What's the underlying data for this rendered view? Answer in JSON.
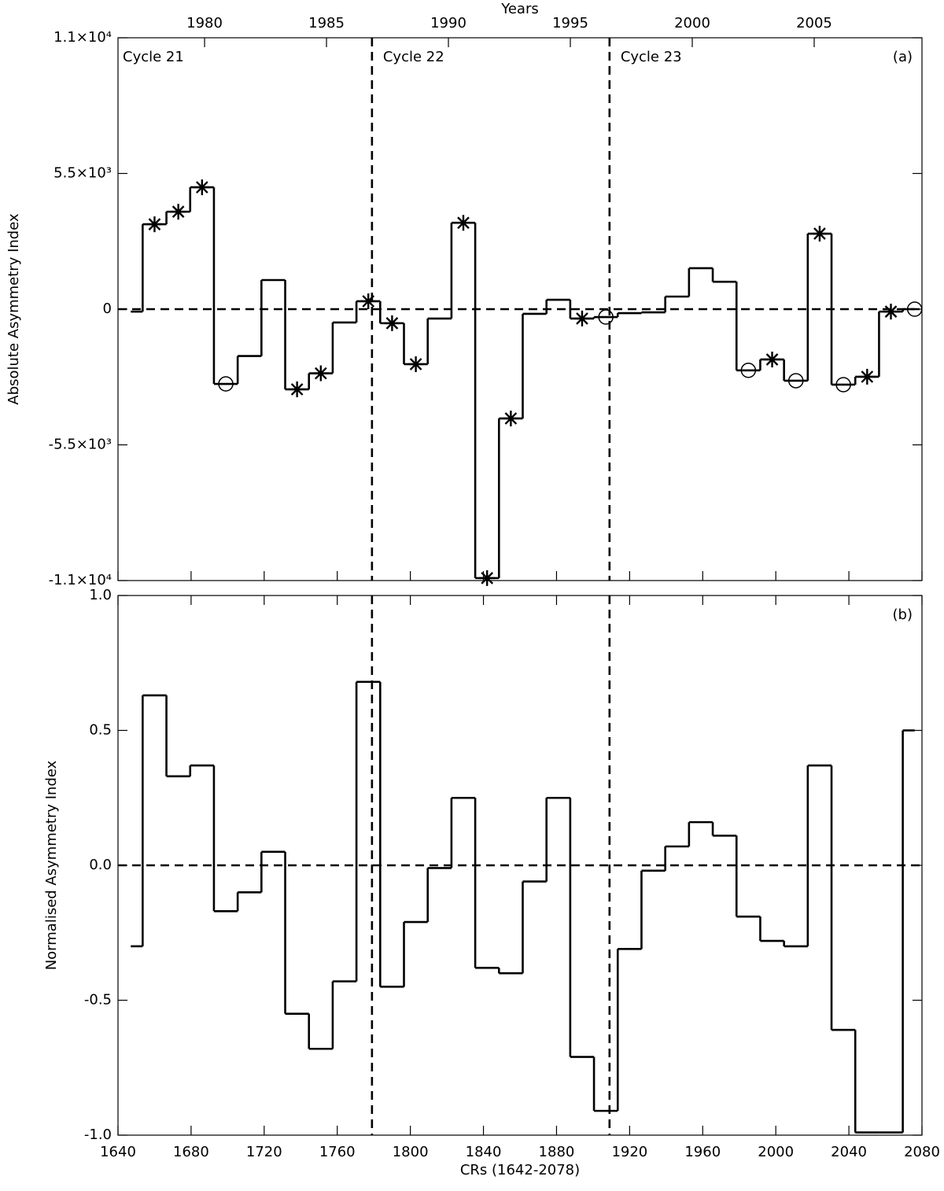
{
  "chart_data": [
    {
      "type": "step",
      "panel_label": "(a)",
      "ylabel": "Absolute Asymmetry Index",
      "x2label": "Years",
      "x2lim": [
        1976.45,
        2009.42
      ],
      "x2ticks": [
        1980,
        1985,
        1990,
        1995,
        2000,
        2005
      ],
      "xlim": [
        1640,
        2080
      ],
      "ylim": [
        -11000,
        11000
      ],
      "yticks": [
        {
          "value": 11000,
          "label": "1.1×10⁴"
        },
        {
          "value": 5500,
          "label": "5.5×10³"
        },
        0,
        {
          "value": -5500,
          "label": "-5.5×10³"
        },
        {
          "value": -11000,
          "label": "-1.1×10⁴"
        }
      ],
      "annotations": [
        "Cycle 21",
        "Cycle 22",
        "Cycle 23"
      ],
      "vlines": [
        1779,
        1909
      ],
      "hline": 0,
      "color": "#000000",
      "x": [
        1647,
        1660,
        1673,
        1686,
        1699,
        1712,
        1725,
        1738,
        1751,
        1764,
        1777,
        1790,
        1803,
        1816,
        1829,
        1842,
        1855,
        1868,
        1881,
        1894,
        1907,
        1920,
        1933,
        1946,
        1959,
        1972,
        1985,
        1998,
        2011,
        2024,
        2037,
        2050,
        2063,
        2076
      ],
      "values": [
        -100,
        3440,
        3950,
        4940,
        -3030,
        -1900,
        1180,
        -3250,
        -2600,
        -540,
        320,
        -570,
        -2230,
        -380,
        3500,
        -10900,
        -4430,
        -190,
        380,
        -380,
        -320,
        -160,
        -130,
        510,
        1660,
        1110,
        -2480,
        -2040,
        -2900,
        3060,
        -3060,
        -2740,
        -100,
        0
      ],
      "markers": [
        null,
        "asterisk",
        "asterisk",
        "asterisk",
        "circle",
        null,
        null,
        "asterisk",
        "asterisk",
        null,
        "asterisk",
        "asterisk",
        "asterisk",
        null,
        "asterisk",
        "asterisk",
        "asterisk",
        null,
        null,
        "asterisk",
        "circle",
        null,
        null,
        null,
        null,
        null,
        "circle",
        "asterisk",
        "circle",
        "asterisk",
        "circle",
        "asterisk",
        "asterisk",
        "circle"
      ]
    },
    {
      "type": "step",
      "panel_label": "(b)",
      "ylabel": "Normalised Asymmetry Index",
      "xlabel": "CRs (1642-2078)",
      "xlim": [
        1640,
        2080
      ],
      "xticks": [
        1640,
        1680,
        1720,
        1760,
        1800,
        1840,
        1880,
        1920,
        1960,
        2000,
        2040,
        2080
      ],
      "ylim": [
        -1.0,
        1.0
      ],
      "yticks": [
        {
          "value": 1.0,
          "label": "1.0"
        },
        0.5,
        {
          "value": 0.0,
          "label": "0.0"
        },
        -0.5,
        {
          "value": -1.0,
          "label": "-1.0"
        }
      ],
      "vlines": [
        1779,
        1909
      ],
      "hline": 0,
      "color": "#000000",
      "x": [
        1647,
        1660,
        1673,
        1686,
        1699,
        1712,
        1725,
        1738,
        1751,
        1764,
        1777,
        1790,
        1803,
        1816,
        1829,
        1842,
        1855,
        1868,
        1881,
        1894,
        1907,
        1920,
        1933,
        1946,
        1959,
        1972,
        1985,
        1998,
        2011,
        2024,
        2037,
        2050,
        2063,
        2076
      ],
      "values": [
        -0.3,
        0.63,
        0.33,
        0.37,
        -0.17,
        -0.1,
        0.05,
        -0.55,
        -0.68,
        -0.43,
        0.68,
        -0.45,
        -0.21,
        -0.01,
        0.25,
        -0.38,
        -0.4,
        -0.06,
        0.25,
        -0.71,
        -0.91,
        -0.31,
        -0.02,
        0.07,
        0.16,
        0.11,
        -0.19,
        -0.28,
        -0.3,
        0.37,
        -0.61,
        -0.99,
        -0.99,
        0.5
      ]
    }
  ]
}
